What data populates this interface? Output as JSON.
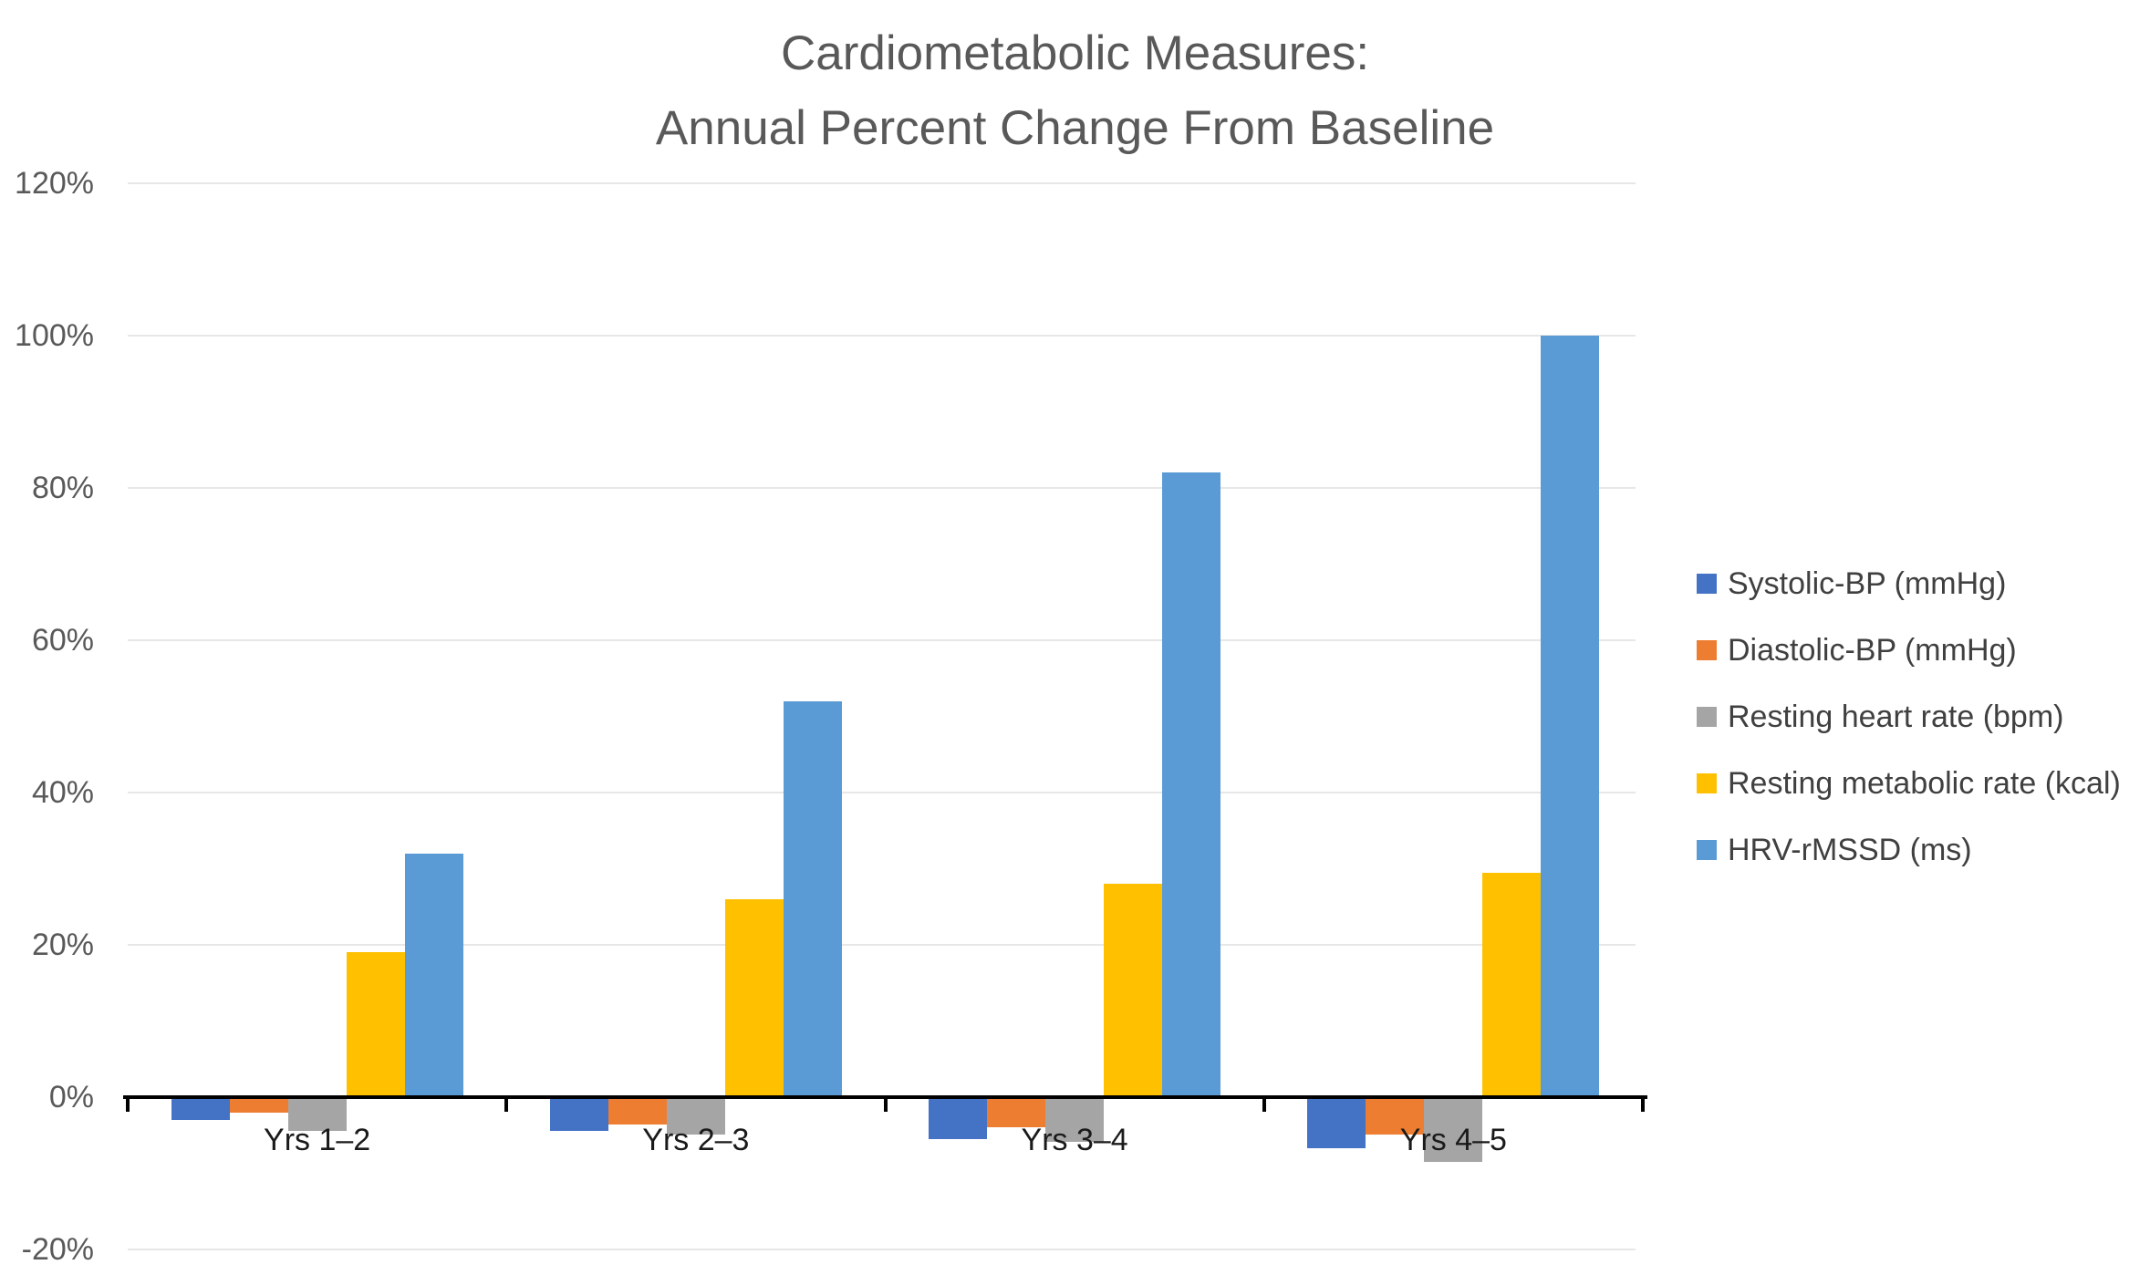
{
  "title": {
    "line1": "Cardiometabolic Measures:",
    "line2": "Annual Percent Change From Baseline"
  },
  "chart_data": {
    "type": "bar",
    "categories": [
      "Yrs 1–2",
      "Yrs 2–3",
      "Yrs 3–4",
      "Yrs 4–5"
    ],
    "series": [
      {
        "name": "Systolic-BP (mmHg)",
        "color": "#4472C4",
        "values": [
          -2.8,
          -4.2,
          -5.3,
          -6.5
        ]
      },
      {
        "name": "Diastolic-BP (mmHg)",
        "color": "#ED7D31",
        "values": [
          -1.8,
          -3.3,
          -3.7,
          -4.7
        ]
      },
      {
        "name": "Resting heart rate (bpm)",
        "color": "#A5A5A5",
        "values": [
          -4.2,
          -4.7,
          -5.6,
          -8.3
        ]
      },
      {
        "name": "Resting metabolic rate (kcal)",
        "color": "#FFC000",
        "values": [
          19,
          26,
          28,
          29.5
        ]
      },
      {
        "name": "HRV-rMSSD (ms)",
        "color": "#5B9BD5",
        "values": [
          32,
          52,
          82,
          100
        ]
      }
    ],
    "y_ticks": [
      {
        "value": 120,
        "label": "120%"
      },
      {
        "value": 100,
        "label": "100%"
      },
      {
        "value": 80,
        "label": "80%"
      },
      {
        "value": 60,
        "label": "60%"
      },
      {
        "value": 40,
        "label": "40%"
      },
      {
        "value": 20,
        "label": "20%"
      },
      {
        "value": 0,
        "label": "0%"
      },
      {
        "value": -20,
        "label": "-20%"
      }
    ],
    "ylim": [
      -20,
      120
    ],
    "ytick_step": 20,
    "grid": true,
    "legend_position": "right",
    "axis_color": "#000000",
    "gridline_color": "#e7e7e7",
    "title_color": "#595959"
  }
}
